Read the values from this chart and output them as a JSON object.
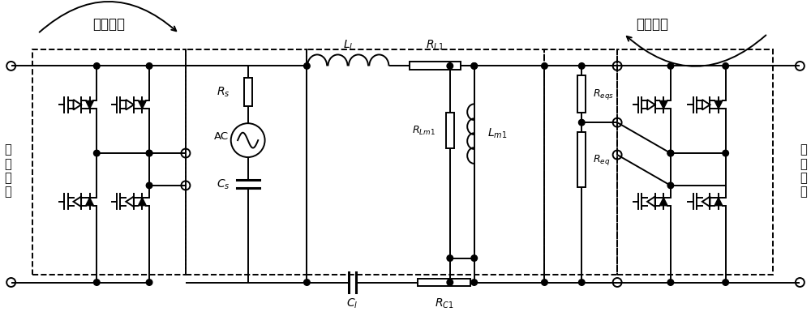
{
  "title_left": "等效关系",
  "title_right": "等效关系",
  "label_input": "输\n入\n母\n线",
  "label_output": "输\n出\n母\n线",
  "labels": {
    "Rs": "$R_s$",
    "AC": "AC",
    "Cs": "$C_s$",
    "L1": "$L_l$",
    "RL1": "$R_{L1}$",
    "RLm1": "$R_{Lm1}$",
    "Lm1": "$L_{m1}$",
    "Reqs": "$R_{eqs}$",
    "Req": "$R_{eq}$",
    "C1": "$C_l$",
    "RC1": "$R_{C1}$"
  },
  "background": "#ffffff"
}
